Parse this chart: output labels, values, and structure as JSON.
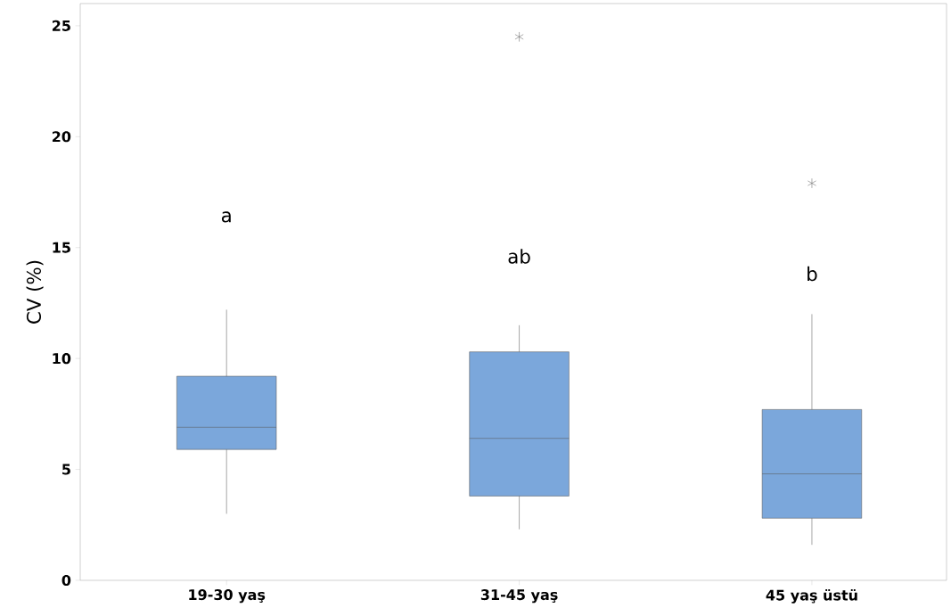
{
  "chart_data": {
    "type": "box",
    "ylabel": "CV (%)",
    "categories": [
      "19-30 yaş",
      "31-45 yaş",
      "45 yaş üstü"
    ],
    "color": "#7ba7db",
    "boxes": [
      {
        "low": 3.0,
        "q1": 5.9,
        "median": 6.9,
        "q3": 9.2,
        "high": 12.2
      },
      {
        "low": 2.3,
        "q1": 3.8,
        "median": 6.4,
        "q3": 10.3,
        "high": 11.5,
        "outliers": [
          24.5
        ]
      },
      {
        "low": 1.6,
        "q1": 2.8,
        "median": 4.8,
        "q3": 7.7,
        "high": 12.0,
        "outliers": [
          17.9
        ]
      }
    ],
    "ylim": [
      0,
      26
    ],
    "yticks": [
      0,
      5,
      10,
      15,
      20,
      25
    ],
    "annotations": [
      "a",
      "ab",
      "b"
    ]
  }
}
